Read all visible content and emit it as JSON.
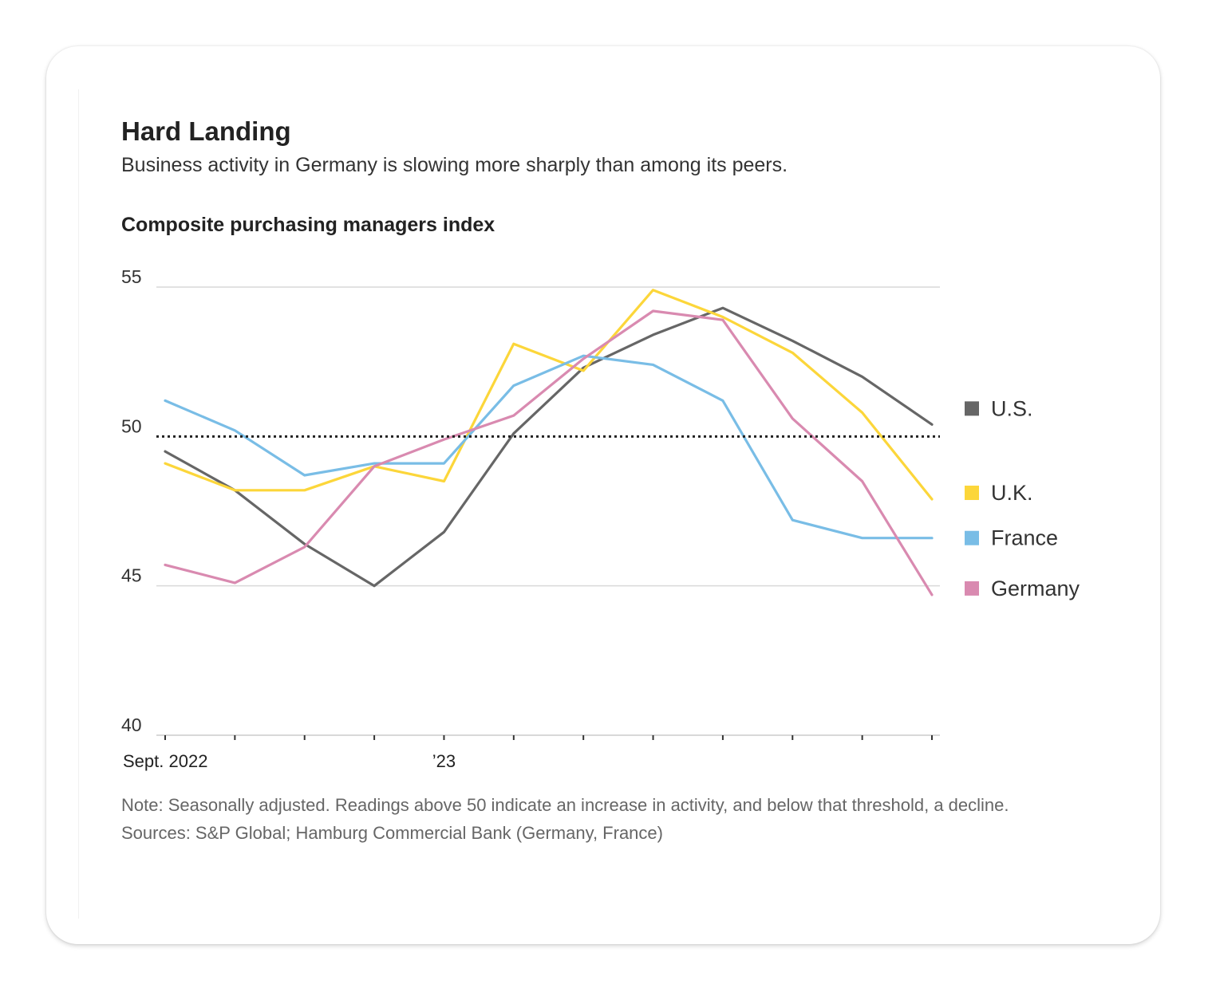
{
  "title": "Hard Landing",
  "subtitle": "Business activity in Germany is slowing more sharply than among its peers.",
  "chart_title": "Composite purchasing managers index",
  "note": "Note: Seasonally adjusted. Readings above 50 indicate an increase in activity, and below that threshold, a decline.",
  "sources": "Sources: S&P Global; Hamburg Commercial Bank (Germany, France)",
  "colors": {
    "us": "#666666",
    "uk": "#fcd63a",
    "france": "#79bde6",
    "germany": "#d98ab0",
    "grid": "#d9d9d9",
    "threshold": "#222222"
  },
  "chart_data": {
    "type": "line",
    "title": "Composite purchasing managers index",
    "xlabel": "",
    "ylabel": "",
    "ylim": [
      40,
      55
    ],
    "yticks": [
      "55",
      "50",
      "45",
      "40"
    ],
    "threshold": 50,
    "x": [
      "Sep 2022",
      "Oct 2022",
      "Nov 2022",
      "Dec 2022",
      "Jan 2023",
      "Feb 2023",
      "Mar 2023",
      "Apr 2023",
      "May 2023",
      "Jun 2023",
      "Jul 2023",
      "Aug 2023"
    ],
    "xtick_labels": [
      {
        "index": 0,
        "label": "Sept. 2022"
      },
      {
        "index": 4,
        "label": "’23"
      }
    ],
    "series": [
      {
        "name": "U.S.",
        "color": "#666666",
        "values": [
          49.5,
          48.2,
          46.4,
          45.0,
          46.8,
          50.1,
          52.3,
          53.4,
          54.3,
          53.2,
          52.0,
          50.4
        ]
      },
      {
        "name": "U.K.",
        "color": "#fcd63a",
        "values": [
          49.1,
          48.2,
          48.2,
          49.0,
          48.5,
          53.1,
          52.2,
          54.9,
          54.0,
          52.8,
          50.8,
          47.9
        ]
      },
      {
        "name": "France",
        "color": "#79bde6",
        "values": [
          51.2,
          50.2,
          48.7,
          49.1,
          49.1,
          51.7,
          52.7,
          52.4,
          51.2,
          47.2,
          46.6,
          46.6
        ]
      },
      {
        "name": "Germany",
        "color": "#d98ab0",
        "values": [
          45.7,
          45.1,
          46.3,
          49.0,
          49.9,
          50.7,
          52.6,
          54.2,
          53.9,
          50.6,
          48.5,
          44.7
        ]
      }
    ],
    "legend_order": [
      "U.S.",
      "U.K.",
      "France",
      "Germany"
    ],
    "legend_position": "right"
  }
}
